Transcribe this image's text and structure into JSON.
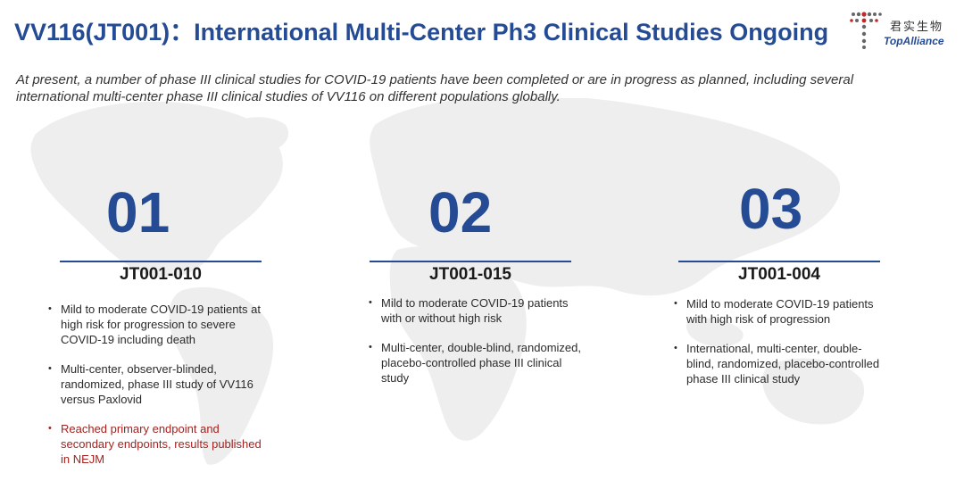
{
  "header": {
    "title": "VV116(JT001)：International Multi-Center Ph3 Clinical Studies Ongoing",
    "logo": {
      "chinese": "君实生物",
      "english": "TopAlliance"
    }
  },
  "intro": "At present, a number of phase III clinical studies for COVID-19 patients have been completed or are in progress as planned, including several international multi-center phase III clinical studies of VV116 on different populations globally.",
  "colors": {
    "brand_blue": "#254b94",
    "highlight_red": "#a5221f",
    "map_gray": "#eeeeee"
  },
  "studies": [
    {
      "number": "01",
      "code": "JT001-010",
      "bullets": [
        "Mild to moderate COVID-19 patients at high risk for progression to severe COVID-19 including death",
        "Multi-center, observer-blinded, randomized, phase III study of VV116 versus Paxlovid",
        "Reached primary endpoint and secondary endpoints, results published in NEJM"
      ]
    },
    {
      "number": "02",
      "code": "JT001-015",
      "bullets": [
        "Mild to moderate COVID-19 patients with or without high risk",
        "Multi-center, double-blind, randomized, placebo-controlled phase III clinical study"
      ]
    },
    {
      "number": "03",
      "code": "JT001-004",
      "bullets": [
        "Mild to moderate COVID-19 patients with high risk of progression",
        "International, multi-center, double-blind, randomized, placebo-controlled phase III clinical study"
      ]
    }
  ]
}
